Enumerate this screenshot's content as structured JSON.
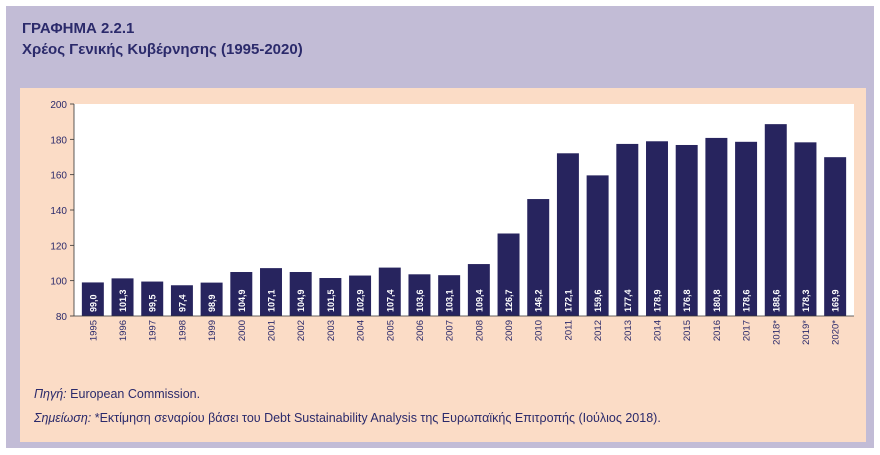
{
  "heading": {
    "code": "ΓΡΑΦΗΜΑ 2.2.1",
    "title": "Χρέος Γενικής Κυβέρνησης (1995-2020)"
  },
  "notes": {
    "source_label": "Πηγή:",
    "source_text": "European Commission.",
    "note_label": "Σημείωση:",
    "note_text": "*Εκτίμηση σεναρίου βάσει του Debt Sustainability Analysis της Ευρωπαϊκής Επιτροπής (Ιούλιος 2018)."
  },
  "colors": {
    "bar": "#27245e",
    "bar_label": "#ffffff",
    "axis_text": "#2b2a6b",
    "plot_bg": "#ffffff",
    "panel_bg": "#fbdcc6",
    "frame_bg": "#c2bcd6"
  },
  "chart_data": {
    "type": "bar",
    "title": "Χρέος Γενικής Κυβέρνησης (1995-2020)",
    "xlabel": "",
    "ylabel": "",
    "ylim": [
      80,
      200
    ],
    "yticks": [
      "80",
      "100",
      "120",
      "140",
      "160",
      "180",
      "200"
    ],
    "grid": false,
    "categories": [
      "1995",
      "1996",
      "1997",
      "1998",
      "1999",
      "2000",
      "2001",
      "2002",
      "2003",
      "2004",
      "2005",
      "2006",
      "2007",
      "2008",
      "2009",
      "2010",
      "2011",
      "2012",
      "2013",
      "2014",
      "2015",
      "2016",
      "2017",
      "2018*",
      "2019*",
      "2020*"
    ],
    "values": [
      99.0,
      101.3,
      99.5,
      97.4,
      98.9,
      104.9,
      107.1,
      104.9,
      101.5,
      102.9,
      107.4,
      103.6,
      103.1,
      109.4,
      126.7,
      146.2,
      172.1,
      159.6,
      177.4,
      178.9,
      176.8,
      180.8,
      178.6,
      188.6,
      178.3,
      169.9
    ],
    "value_labels": [
      "99,0",
      "101,3",
      "99,5",
      "97,4",
      "98,9",
      "104,9",
      "107,1",
      "104,9",
      "101,5",
      "102,9",
      "107,4",
      "103,6",
      "103,1",
      "109,4",
      "126,7",
      "146,2",
      "172,1",
      "159,6",
      "177,4",
      "178,9",
      "176,8",
      "180,8",
      "178,6",
      "188,6",
      "178,3",
      "169,9"
    ]
  }
}
